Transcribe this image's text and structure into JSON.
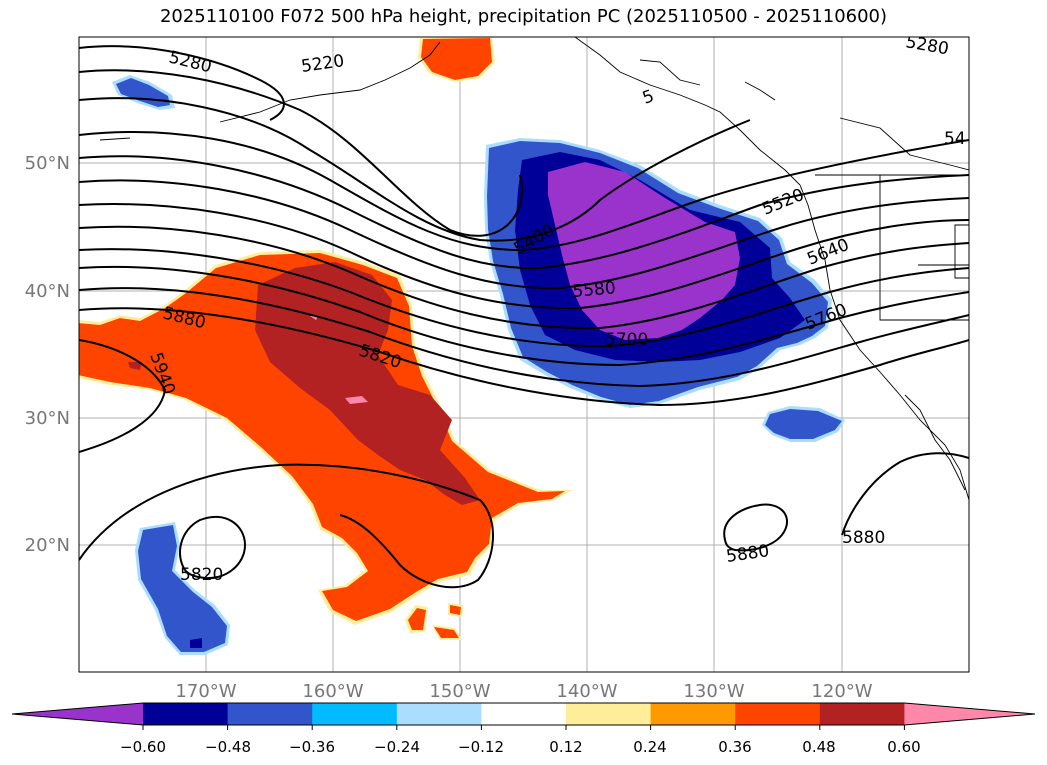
{
  "title": "2025110100 F072 500 hPa height, precipitation PC (2025110500 - 2025110600)",
  "map": {
    "lat_labels": [
      "50°N",
      "40°N",
      "30°N",
      "20°N"
    ],
    "lon_labels": [
      "170°W",
      "160°W",
      "150°W",
      "140°W",
      "130°W",
      "120°W"
    ],
    "contour_labels": [
      "5280",
      "5220",
      "5280",
      "54",
      "5520",
      "5640",
      "5760",
      "5400",
      "5580",
      "5700",
      "5880",
      "5940",
      "5820",
      "5820",
      "5880",
      "5880",
      "5"
    ],
    "gridlines": true
  },
  "colorbar": {
    "ticks": [
      "−0.60",
      "−0.48",
      "−0.36",
      "−0.24",
      "−0.12",
      "0.12",
      "0.24",
      "0.36",
      "0.48",
      "0.60"
    ],
    "colors": [
      "#9933cc",
      "#000099",
      "#3355cc",
      "#00bbff",
      "#aaddff",
      "#ffffff",
      "#ffee99",
      "#ff9900",
      "#ff4400",
      "#b22222",
      "#ff88aa"
    ]
  }
}
